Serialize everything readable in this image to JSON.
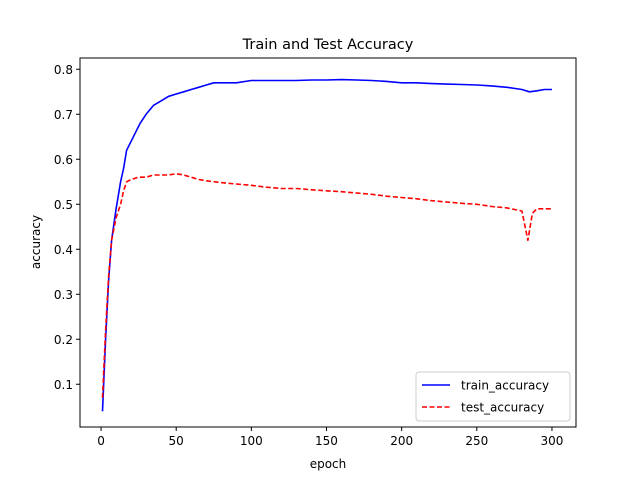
{
  "chart_data": {
    "type": "line",
    "title": "Train and Test Accuracy",
    "xlabel": "epoch",
    "ylabel": "accuracy",
    "xlim": [
      -14,
      316
    ],
    "ylim": [
      0.005,
      0.825
    ],
    "xticks": [
      0,
      50,
      100,
      150,
      200,
      250,
      300
    ],
    "yticks": [
      0.1,
      0.2,
      0.3,
      0.4,
      0.5,
      0.6,
      0.7,
      0.8
    ],
    "grid": false,
    "legend_position": "lower-right",
    "series": [
      {
        "name": "train_accuracy",
        "color": "#0000ff",
        "style": "solid",
        "points": [
          [
            1,
            0.04
          ],
          [
            3,
            0.2
          ],
          [
            5,
            0.33
          ],
          [
            7,
            0.42
          ],
          [
            10,
            0.49
          ],
          [
            13,
            0.55
          ],
          [
            15,
            0.58
          ],
          [
            17,
            0.62
          ],
          [
            20,
            0.64
          ],
          [
            23,
            0.66
          ],
          [
            26,
            0.68
          ],
          [
            30,
            0.7
          ],
          [
            35,
            0.72
          ],
          [
            40,
            0.73
          ],
          [
            45,
            0.74
          ],
          [
            50,
            0.745
          ],
          [
            55,
            0.75
          ],
          [
            60,
            0.755
          ],
          [
            65,
            0.76
          ],
          [
            70,
            0.765
          ],
          [
            75,
            0.77
          ],
          [
            80,
            0.77
          ],
          [
            90,
            0.77
          ],
          [
            100,
            0.775
          ],
          [
            110,
            0.775
          ],
          [
            120,
            0.775
          ],
          [
            130,
            0.775
          ],
          [
            140,
            0.776
          ],
          [
            150,
            0.776
          ],
          [
            160,
            0.777
          ],
          [
            170,
            0.776
          ],
          [
            180,
            0.775
          ],
          [
            190,
            0.773
          ],
          [
            200,
            0.77
          ],
          [
            210,
            0.77
          ],
          [
            220,
            0.768
          ],
          [
            230,
            0.767
          ],
          [
            240,
            0.766
          ],
          [
            250,
            0.765
          ],
          [
            260,
            0.763
          ],
          [
            270,
            0.76
          ],
          [
            280,
            0.755
          ],
          [
            285,
            0.75
          ],
          [
            290,
            0.752
          ],
          [
            295,
            0.755
          ],
          [
            300,
            0.755
          ]
        ]
      },
      {
        "name": "test_accuracy",
        "color": "#ff0000",
        "style": "dashed",
        "points": [
          [
            1,
            0.07
          ],
          [
            3,
            0.22
          ],
          [
            5,
            0.34
          ],
          [
            7,
            0.42
          ],
          [
            10,
            0.47
          ],
          [
            13,
            0.5
          ],
          [
            15,
            0.53
          ],
          [
            17,
            0.55
          ],
          [
            20,
            0.555
          ],
          [
            25,
            0.56
          ],
          [
            30,
            0.56
          ],
          [
            35,
            0.565
          ],
          [
            40,
            0.565
          ],
          [
            45,
            0.565
          ],
          [
            50,
            0.568
          ],
          [
            55,
            0.565
          ],
          [
            60,
            0.56
          ],
          [
            65,
            0.555
          ],
          [
            70,
            0.552
          ],
          [
            80,
            0.548
          ],
          [
            90,
            0.545
          ],
          [
            100,
            0.542
          ],
          [
            110,
            0.538
          ],
          [
            120,
            0.535
          ],
          [
            130,
            0.535
          ],
          [
            140,
            0.532
          ],
          [
            150,
            0.53
          ],
          [
            160,
            0.528
          ],
          [
            170,
            0.525
          ],
          [
            180,
            0.522
          ],
          [
            190,
            0.518
          ],
          [
            200,
            0.515
          ],
          [
            210,
            0.512
          ],
          [
            220,
            0.508
          ],
          [
            230,
            0.505
          ],
          [
            240,
            0.502
          ],
          [
            250,
            0.5
          ],
          [
            260,
            0.495
          ],
          [
            270,
            0.492
          ],
          [
            280,
            0.485
          ],
          [
            284,
            0.42
          ],
          [
            287,
            0.48
          ],
          [
            290,
            0.49
          ],
          [
            295,
            0.49
          ],
          [
            300,
            0.49
          ]
        ]
      }
    ]
  }
}
